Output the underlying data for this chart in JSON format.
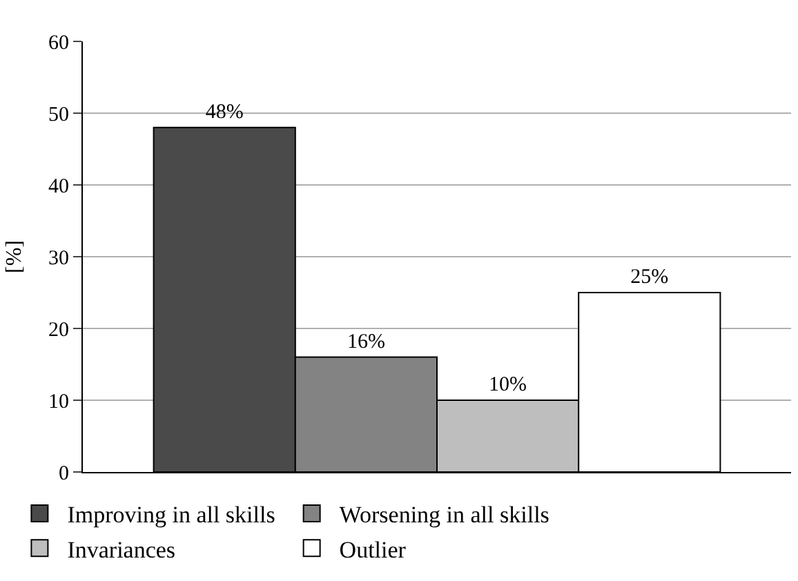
{
  "chart_data": {
    "type": "bar",
    "ylabel": "[%]",
    "categories": [
      null
    ],
    "ylim": [
      0,
      60
    ],
    "yticks": [
      0,
      10,
      20,
      30,
      40,
      50,
      60
    ],
    "grid": "y",
    "legend": "bottom left",
    "tick_labels": "y",
    "series": [
      {
        "name": "Improving in all skills",
        "color": "#4a4a4a",
        "values": [
          48
        ],
        "value_labels": [
          "48%"
        ]
      },
      {
        "name": "Worsening in all skills",
        "color": "#838383",
        "values": [
          16
        ],
        "value_labels": [
          "16%"
        ]
      },
      {
        "name": "Invariances",
        "color": "#bebebe",
        "values": [
          10
        ],
        "value_labels": [
          "10%"
        ]
      },
      {
        "name": "Outlier",
        "color": "#ffffff",
        "values": [
          25
        ],
        "value_labels": [
          "25%"
        ]
      }
    ]
  }
}
